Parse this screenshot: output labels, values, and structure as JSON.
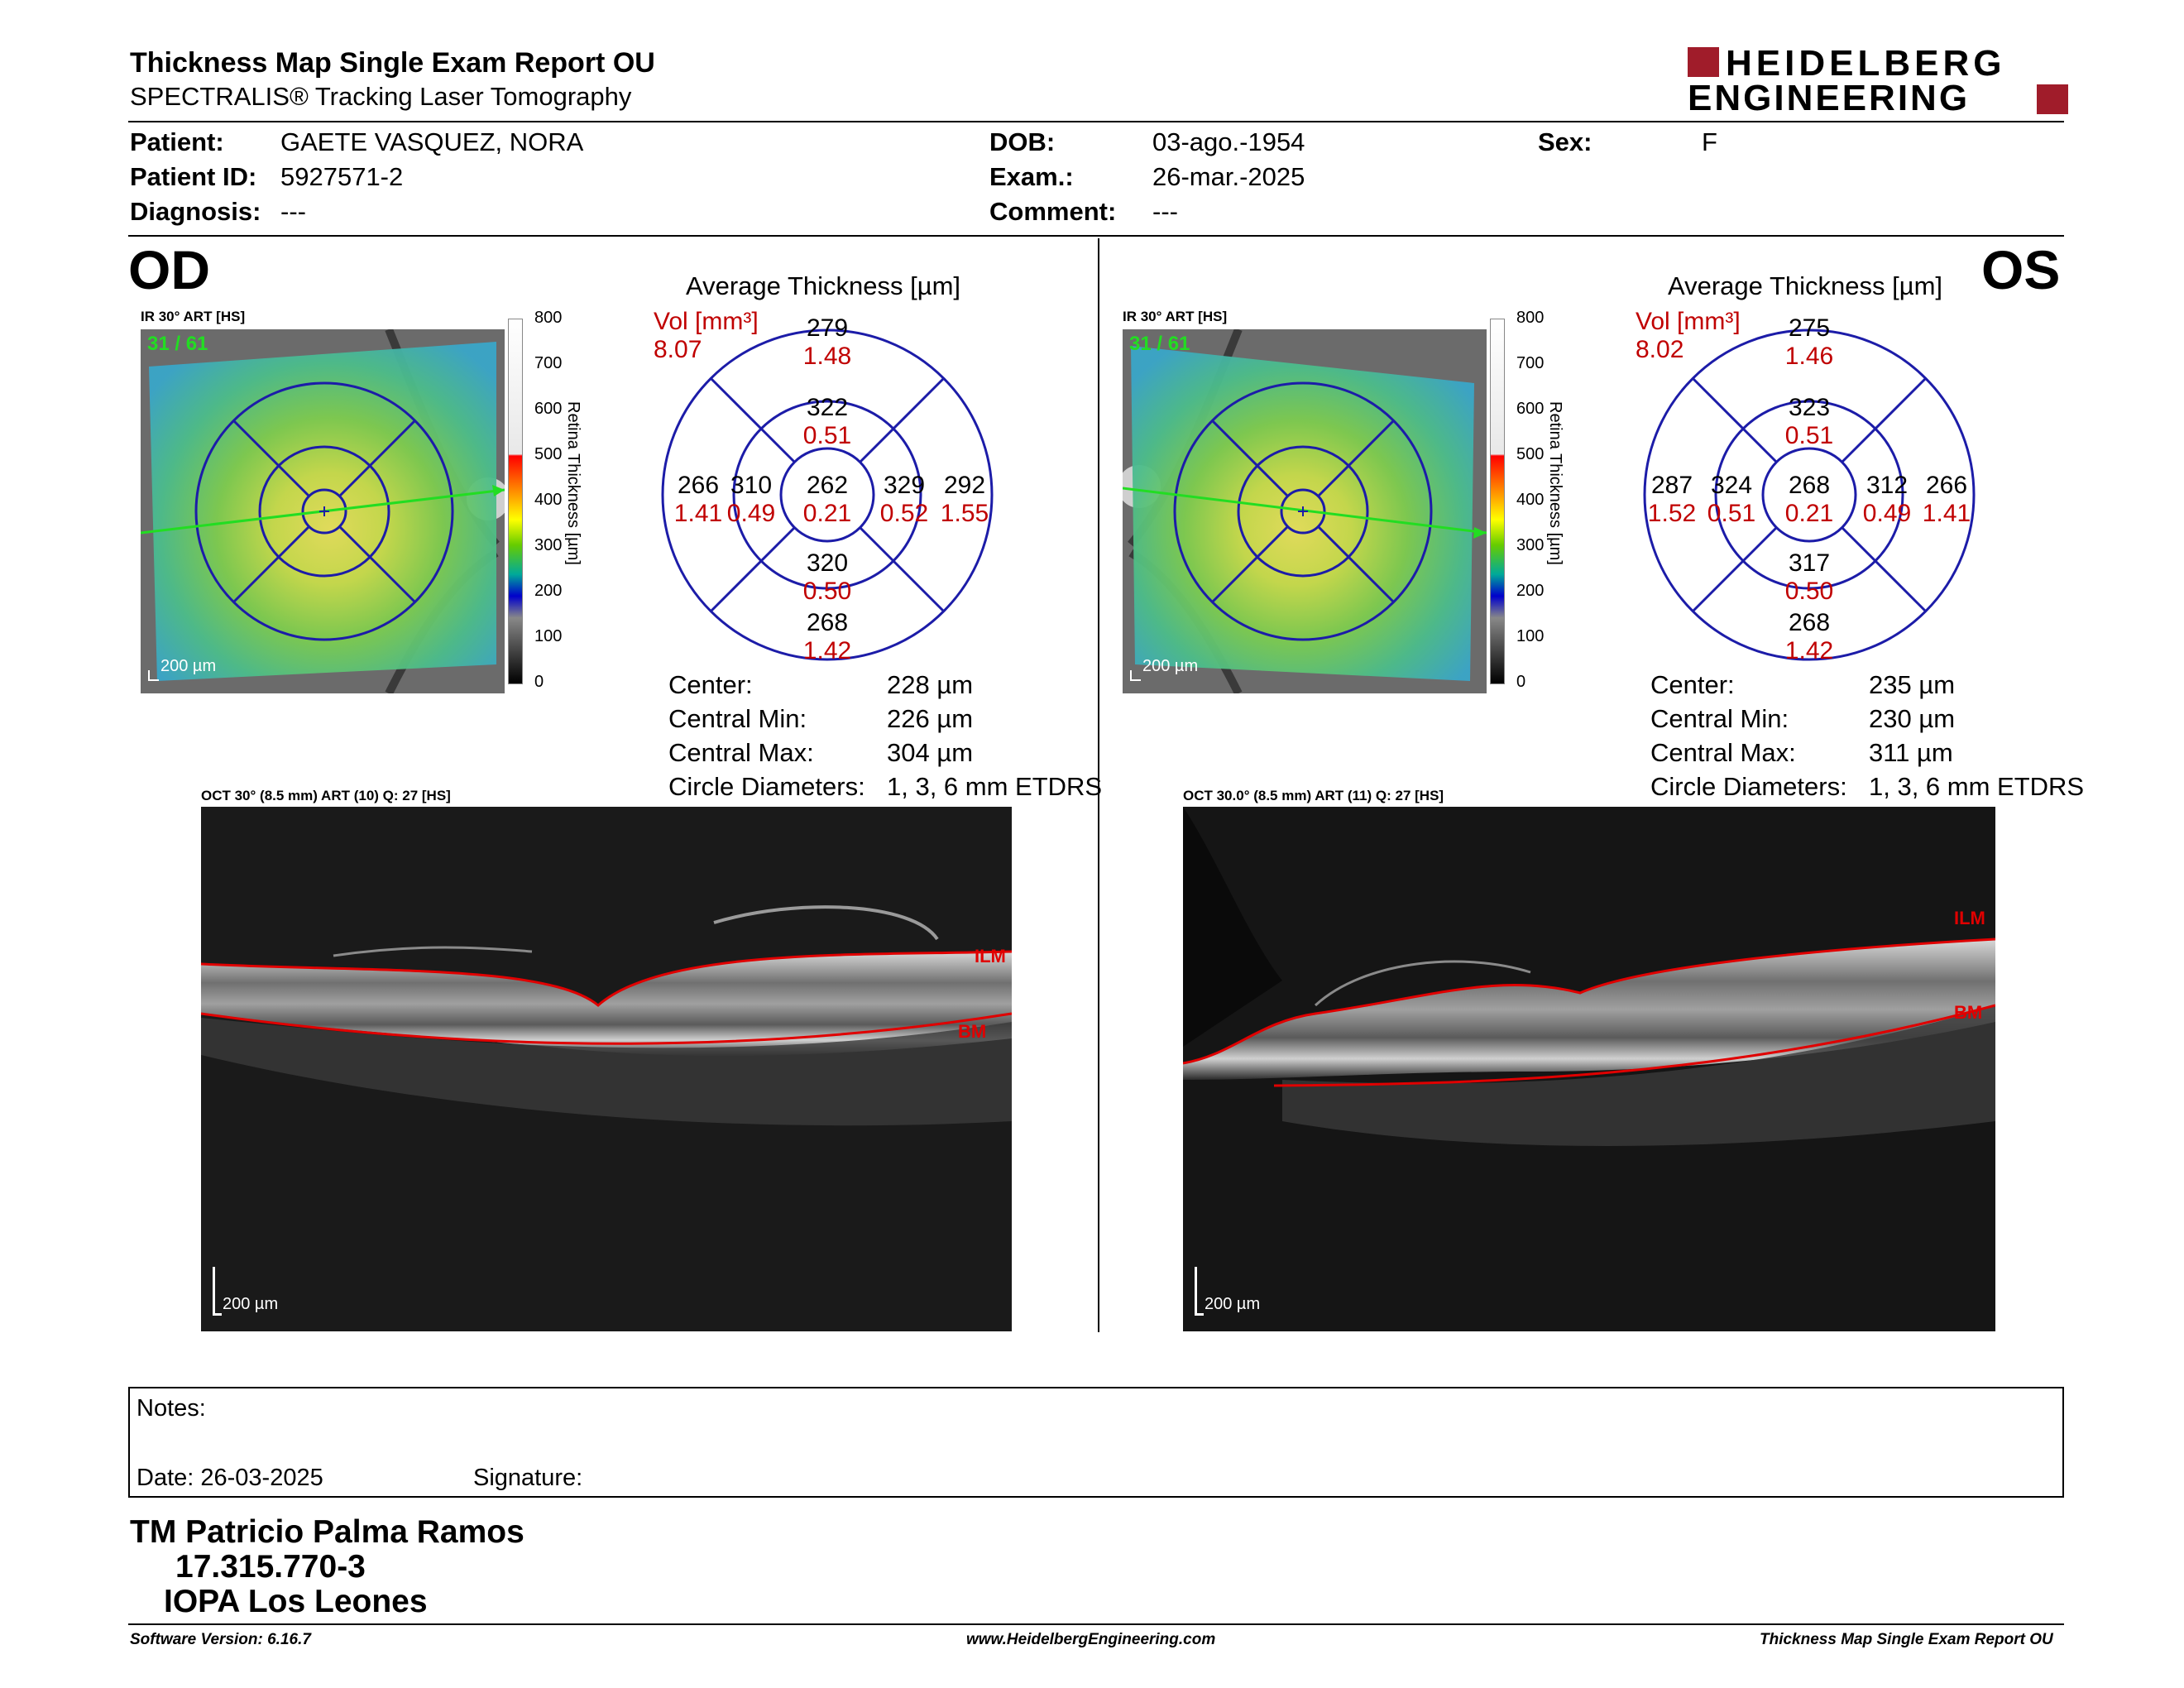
{
  "report": {
    "title": "Thickness Map Single Exam Report OU",
    "subtitle": "SPECTRALIS® Tracking Laser Tomography"
  },
  "logo": {
    "line1": "HEIDELBERG",
    "line2": "ENGINEERING",
    "color": "#a01c2a"
  },
  "patient": {
    "patient_label": "Patient:",
    "patient": "GAETE VASQUEZ, NORA",
    "id_label": "Patient ID:",
    "id": "5927571-2",
    "diagnosis_label": "Diagnosis:",
    "diagnosis": "---",
    "dob_label": "DOB:",
    "dob": "03-ago.-1954",
    "exam_label": "Exam.:",
    "exam": "26-mar.-2025",
    "comment_label": "Comment:",
    "comment": "---",
    "sex_label": "Sex:",
    "sex": "F"
  },
  "od": {
    "eye": "OD",
    "ir_label": "IR 30° ART [HS]",
    "frames": "31 / 61",
    "fundus_scale": "200 µm",
    "avg_title": "Average Thickness [µm]",
    "vol_label": "Vol [mm³]",
    "vol_total": "8.07",
    "etdrs": {
      "center": {
        "t": "262",
        "v": "0.21"
      },
      "inner_sup": {
        "t": "322",
        "v": "0.51"
      },
      "inner_inf": {
        "t": "320",
        "v": "0.50"
      },
      "inner_left": {
        "t": "310",
        "v": "0.49"
      },
      "inner_right": {
        "t": "329",
        "v": "0.52"
      },
      "outer_sup": {
        "t": "279",
        "v": "1.48"
      },
      "outer_inf": {
        "t": "268",
        "v": "1.42"
      },
      "outer_left": {
        "t": "266",
        "v": "1.41"
      },
      "outer_right": {
        "t": "292",
        "v": "1.55"
      }
    },
    "stats": {
      "center_label": "Center:",
      "center": "228 µm",
      "min_label": "Central Min:",
      "min": "226 µm",
      "max_label": "Central Max:",
      "max": "304 µm",
      "circ_label": "Circle Diameters:",
      "circ": "1, 3, 6 mm ETDRS"
    },
    "oct_label": "OCT 30° (8.5 mm) ART (10) Q: 27 [HS]",
    "oct_scale": "200 µm",
    "ilm": "ILM",
    "bm": "BM"
  },
  "os": {
    "eye": "OS",
    "ir_label": "IR 30° ART [HS]",
    "frames": "31 / 61",
    "fundus_scale": "200 µm",
    "avg_title": "Average Thickness [µm]",
    "vol_label": "Vol [mm³]",
    "vol_total": "8.02",
    "etdrs": {
      "center": {
        "t": "268",
        "v": "0.21"
      },
      "inner_sup": {
        "t": "323",
        "v": "0.51"
      },
      "inner_inf": {
        "t": "317",
        "v": "0.50"
      },
      "inner_left": {
        "t": "324",
        "v": "0.51"
      },
      "inner_right": {
        "t": "312",
        "v": "0.49"
      },
      "outer_sup": {
        "t": "275",
        "v": "1.46"
      },
      "outer_inf": {
        "t": "268",
        "v": "1.42"
      },
      "outer_left": {
        "t": "287",
        "v": "1.52"
      },
      "outer_right": {
        "t": "266",
        "v": "1.41"
      }
    },
    "stats": {
      "center_label": "Center:",
      "center": "235 µm",
      "min_label": "Central Min:",
      "min": "230 µm",
      "max_label": "Central Max:",
      "max": "311 µm",
      "circ_label": "Circle Diameters:",
      "circ": "1, 3, 6 mm ETDRS"
    },
    "oct_label": "OCT 30.0° (8.5 mm) ART (11) Q: 27 [HS]",
    "oct_scale": "200 µm",
    "ilm": "ILM",
    "bm": "BM"
  },
  "colorbar": {
    "ticks": [
      "800",
      "700",
      "600",
      "500",
      "400",
      "300",
      "200",
      "100",
      "0"
    ],
    "title": "Retina Thickness [µm]"
  },
  "notes": {
    "notes_label": "Notes:",
    "date_label": "Date: 26-03-2025",
    "signature_label": "Signature:"
  },
  "signer": {
    "name": "TM Patricio Palma Ramos",
    "rut": "17.315.770-3",
    "institution": "IOPA Los Leones"
  },
  "footer": {
    "software": "Software Version: 6.16.7",
    "website": "www.HeidelbergEngineering.com",
    "report_name": "Thickness Map Single Exam Report OU"
  },
  "colors": {
    "accent_red": "#cc0000",
    "etdrs_blue": "#1c1ca8",
    "scan_green": "#22dd22"
  }
}
